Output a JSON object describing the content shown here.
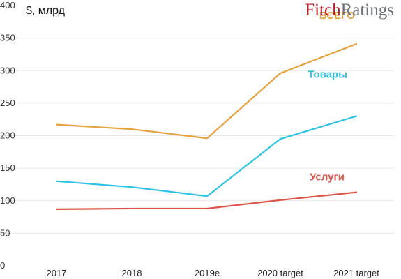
{
  "brand": {
    "part1": "Fitch",
    "part2": "Ratings",
    "color1": "#b51e2a",
    "color2": "#6b7279"
  },
  "chart_data": {
    "type": "line",
    "ylabel": "$, млрд",
    "xlabel": "",
    "categories": [
      "2017",
      "2018",
      "2019e",
      "2020 target",
      "2021 target"
    ],
    "ylim": [
      0,
      400
    ],
    "yticks": [
      0,
      50,
      100,
      150,
      200,
      250,
      300,
      350,
      400
    ],
    "grid": true,
    "series": [
      {
        "name": "ВСЕГО",
        "color": "#e7a13e",
        "values": [
          217,
          210,
          196,
          296,
          341
        ]
      },
      {
        "name": "Товары",
        "color": "#2ec3e6",
        "values": [
          130,
          121,
          107,
          195,
          230
        ]
      },
      {
        "name": "Услуги",
        "color": "#de5346",
        "values": [
          87,
          88,
          88,
          101,
          113
        ]
      }
    ]
  }
}
